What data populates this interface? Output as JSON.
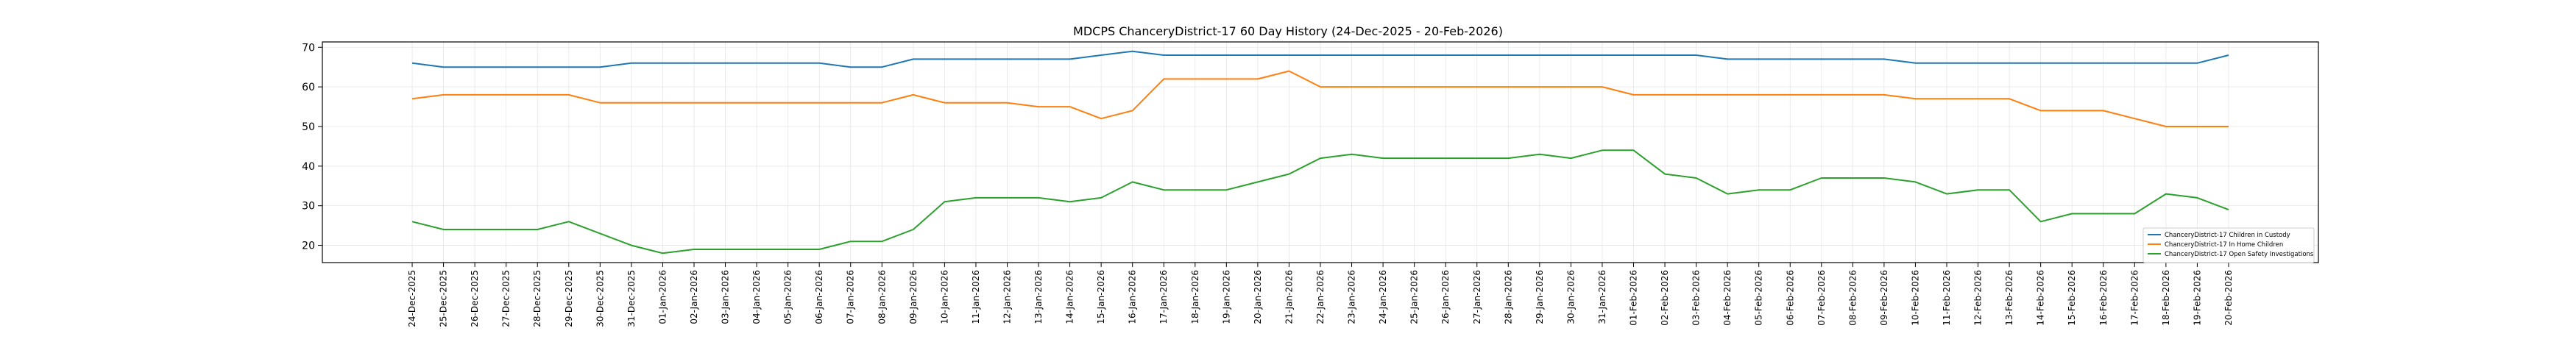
{
  "chart_data": {
    "type": "line",
    "title": "MDCPS ChanceryDistrict-17 60 Day History (24-Dec-2025 - 20-Feb-2026)",
    "xlabel": "",
    "ylabel": "",
    "ylim": [
      15.65,
      71.35
    ],
    "yticks": [
      20,
      30,
      40,
      50,
      60,
      70
    ],
    "grid": true,
    "legend_position": "lower-right",
    "x": [
      "24-Dec-2025",
      "25-Dec-2025",
      "26-Dec-2025",
      "27-Dec-2025",
      "28-Dec-2025",
      "29-Dec-2025",
      "30-Dec-2025",
      "31-Dec-2025",
      "01-Jan-2026",
      "02-Jan-2026",
      "03-Jan-2026",
      "04-Jan-2026",
      "05-Jan-2026",
      "06-Jan-2026",
      "07-Jan-2026",
      "08-Jan-2026",
      "09-Jan-2026",
      "10-Jan-2026",
      "11-Jan-2026",
      "12-Jan-2026",
      "13-Jan-2026",
      "14-Jan-2026",
      "15-Jan-2026",
      "16-Jan-2026",
      "17-Jan-2026",
      "18-Jan-2026",
      "19-Jan-2026",
      "20-Jan-2026",
      "21-Jan-2026",
      "22-Jan-2026",
      "23-Jan-2026",
      "24-Jan-2026",
      "25-Jan-2026",
      "26-Jan-2026",
      "27-Jan-2026",
      "28-Jan-2026",
      "29-Jan-2026",
      "30-Jan-2026",
      "31-Jan-2026",
      "01-Feb-2026",
      "02-Feb-2026",
      "03-Feb-2026",
      "04-Feb-2026",
      "05-Feb-2026",
      "06-Feb-2026",
      "07-Feb-2026",
      "08-Feb-2026",
      "09-Feb-2026",
      "10-Feb-2026",
      "11-Feb-2026",
      "12-Feb-2026",
      "13-Feb-2026",
      "14-Feb-2026",
      "15-Feb-2026",
      "16-Feb-2026",
      "17-Feb-2026",
      "18-Feb-2026",
      "19-Feb-2026",
      "20-Feb-2026"
    ],
    "series": [
      {
        "name": "ChanceryDistrict-17 Children in Custody",
        "color": "#1f77b4",
        "values": [
          66,
          65,
          65,
          65,
          65,
          65,
          65,
          66,
          66,
          66,
          66,
          66,
          66,
          66,
          65,
          65,
          67,
          67,
          67,
          67,
          67,
          67,
          68,
          69,
          68,
          68,
          68,
          68,
          68,
          68,
          68,
          68,
          68,
          68,
          68,
          68,
          68,
          68,
          68,
          68,
          68,
          68,
          67,
          67,
          67,
          67,
          67,
          67,
          66,
          66,
          66,
          66,
          66,
          66,
          66,
          66,
          66,
          66,
          68
        ]
      },
      {
        "name": "ChanceryDistrict-17 In Home Children",
        "color": "#ff7f0e",
        "values": [
          57,
          58,
          58,
          58,
          58,
          58,
          56,
          56,
          56,
          56,
          56,
          56,
          56,
          56,
          56,
          56,
          58,
          56,
          56,
          56,
          55,
          55,
          52,
          54,
          62,
          62,
          62,
          62,
          64,
          60,
          60,
          60,
          60,
          60,
          60,
          60,
          60,
          60,
          60,
          58,
          58,
          58,
          58,
          58,
          58,
          58,
          58,
          58,
          57,
          57,
          57,
          57,
          54,
          54,
          54,
          52,
          50,
          50,
          50
        ]
      },
      {
        "name": "ChanceryDistrict-17 Open Safety Investigations",
        "color": "#2ca02c",
        "values": [
          26,
          24,
          24,
          24,
          24,
          26,
          23,
          20,
          18,
          19,
          19,
          19,
          19,
          19,
          21,
          21,
          24,
          31,
          32,
          32,
          32,
          31,
          32,
          36,
          34,
          34,
          34,
          36,
          38,
          42,
          43,
          42,
          42,
          42,
          42,
          42,
          43,
          42,
          44,
          44,
          38,
          37,
          33,
          34,
          34,
          37,
          37,
          37,
          36,
          33,
          34,
          34,
          26,
          28,
          28,
          28,
          33,
          32,
          29
        ]
      }
    ]
  }
}
